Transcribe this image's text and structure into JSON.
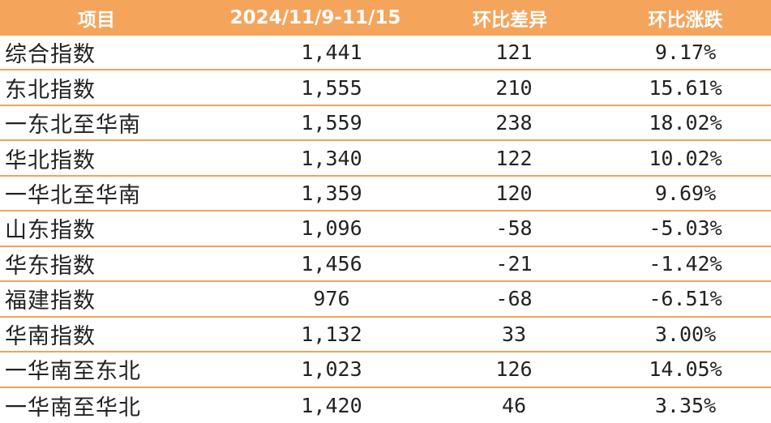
{
  "header": {
    "col1": "项目",
    "col2": "2024/11/9-11/15",
    "col3": "环比差异",
    "col4": "环比涨跌"
  },
  "rows": [
    {
      "name": "综合指数",
      "value": "1,441",
      "diff": "121",
      "pct": "9.17%"
    },
    {
      "name": "东北指数",
      "value": "1,555",
      "diff": "210",
      "pct": "15.61%"
    },
    {
      "name": "一东北至华南",
      "value": "1,559",
      "diff": "238",
      "pct": "18.02%"
    },
    {
      "name": "华北指数",
      "value": "1,340",
      "diff": "122",
      "pct": "10.02%"
    },
    {
      "name": "一华北至华南",
      "value": "1,359",
      "diff": "120",
      "pct": "9.69%"
    },
    {
      "name": "山东指数",
      "value": "1,096",
      "diff": "-58",
      "pct": "-5.03%"
    },
    {
      "name": "华东指数",
      "value": "1,456",
      "diff": "-21",
      "pct": "-1.42%"
    },
    {
      "name": "福建指数",
      "value": "976",
      "diff": "-68",
      "pct": "-6.51%"
    },
    {
      "name": "华南指数",
      "value": "1,132",
      "diff": "33",
      "pct": "3.00%"
    },
    {
      "name": "一华南至东北",
      "value": "1,023",
      "diff": "126",
      "pct": "14.05%"
    },
    {
      "name": "一华南至华北",
      "value": "1,420",
      "diff": "46",
      "pct": "3.35%"
    }
  ]
}
